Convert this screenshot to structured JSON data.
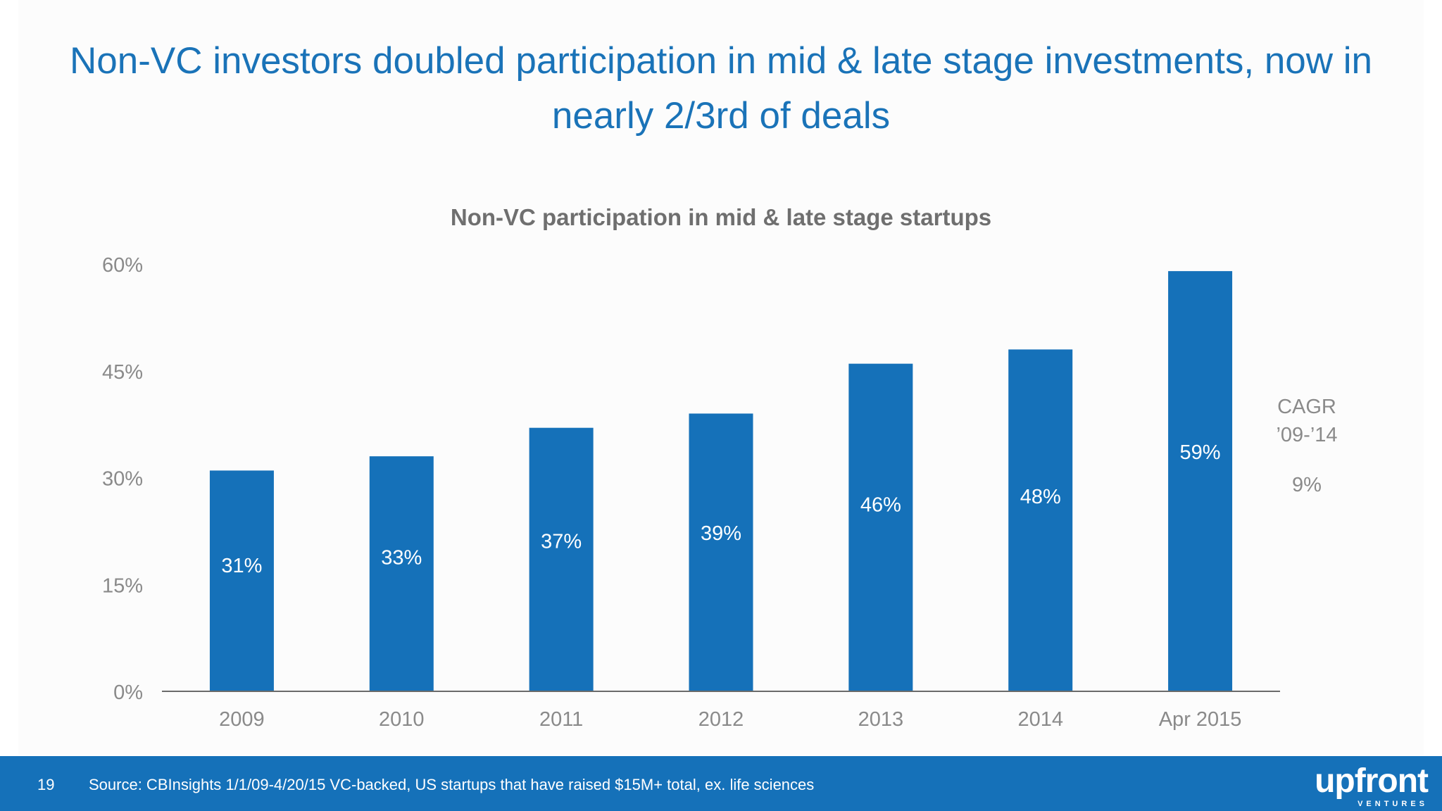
{
  "slide": {
    "title": "Non-VC investors doubled participation in mid & late stage investments, now in nearly 2/3rd of deals",
    "page_number": "19",
    "source": "Source: CBInsights 1/1/09-4/20/15 VC-backed, US startups that have raised $15M+ total, ex. life sciences",
    "logo_text": "upfront",
    "logo_subtext": "VENTURES"
  },
  "colors": {
    "accent": "#1a73b8",
    "bar": "#1571b9",
    "footer": "#1571b9",
    "axis_text": "#8a8a8a",
    "chart_title": "#6f6f6f"
  },
  "chart_data": {
    "type": "bar",
    "title": "Non-VC participation in mid & late stage startups",
    "categories": [
      "2009",
      "2010",
      "2011",
      "2012",
      "2013",
      "2014",
      "Apr 2015"
    ],
    "values": [
      31,
      33,
      37,
      39,
      46,
      48,
      59
    ],
    "data_labels": [
      "31%",
      "33%",
      "37%",
      "39%",
      "46%",
      "48%",
      "59%"
    ],
    "ylim": [
      0,
      60
    ],
    "yticks": [
      0,
      15,
      30,
      45,
      60
    ],
    "ytick_labels": [
      "0%",
      "15%",
      "30%",
      "45%",
      "60%"
    ],
    "xlabel": "",
    "ylabel": "",
    "grid": false,
    "legend": "none",
    "annotation": {
      "label_line1": "CAGR",
      "label_line2": "’09-’14",
      "value": "9%"
    }
  }
}
